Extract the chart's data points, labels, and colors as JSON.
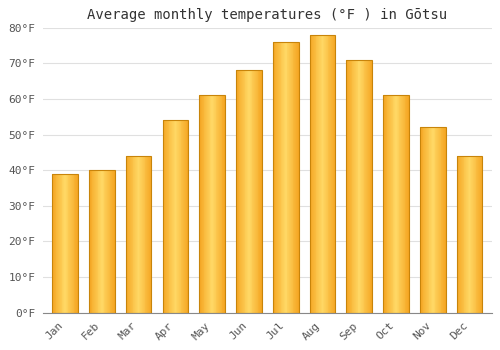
{
  "title": "Average monthly temperatures (°F ) in Gōtsu",
  "months": [
    "Jan",
    "Feb",
    "Mar",
    "Apr",
    "May",
    "Jun",
    "Jul",
    "Aug",
    "Sep",
    "Oct",
    "Nov",
    "Dec"
  ],
  "values": [
    39,
    40,
    44,
    54,
    61,
    68,
    76,
    78,
    71,
    61,
    52,
    44
  ],
  "bar_color_main": "#F5A623",
  "bar_color_light": "#FFD966",
  "bar_color_dark": "#E8960C",
  "bar_edge_color": "#C8840A",
  "ylim": [
    0,
    80
  ],
  "yticks": [
    0,
    10,
    20,
    30,
    40,
    50,
    60,
    70,
    80
  ],
  "ytick_labels": [
    "0°F",
    "10°F",
    "20°F",
    "30°F",
    "40°F",
    "50°F",
    "60°F",
    "70°F",
    "80°F"
  ],
  "background_color": "#FFFFFF",
  "plot_bg_color": "#FFFFFF",
  "grid_color": "#E0E0E0",
  "title_fontsize": 10,
  "tick_fontsize": 8,
  "bar_width": 0.7
}
